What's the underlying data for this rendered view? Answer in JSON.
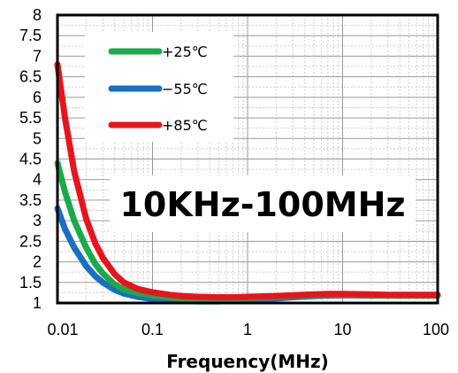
{
  "chart_data": {
    "type": "line",
    "xlabel": "Frequency(MHz)",
    "ylabel": "",
    "x_scale": "log",
    "xlim": [
      0.01,
      100
    ],
    "ylim": [
      1,
      8
    ],
    "x_ticks": [
      0.01,
      0.1,
      1,
      10,
      100
    ],
    "x_tick_labels": [
      "0.01",
      "0.1",
      "1",
      "10",
      "100"
    ],
    "y_ticks": [
      1,
      1.5,
      2,
      2.5,
      3,
      3.5,
      4,
      4.5,
      5,
      5.5,
      6,
      6.5,
      7,
      7.5,
      8
    ],
    "y_tick_labels": [
      "1",
      "1.5",
      "2",
      "2.5",
      "3",
      "3.5",
      "4",
      "4.5",
      "5",
      "5.5",
      "6",
      "6.5",
      "7",
      "7.5",
      "8"
    ],
    "grid": true,
    "legend_position": "top-left",
    "annotation": "10KHz-100MHz",
    "series": [
      {
        "name": "+25℃",
        "color": "#1aaa4a",
        "x": [
          0.01,
          0.012,
          0.015,
          0.02,
          0.025,
          0.03,
          0.04,
          0.05,
          0.07,
          0.1,
          0.15,
          0.2,
          0.3,
          0.5,
          0.7,
          1,
          2,
          3,
          5,
          7,
          10,
          20,
          30,
          50,
          100
        ],
        "values": [
          4.4,
          3.7,
          3.0,
          2.35,
          1.95,
          1.72,
          1.45,
          1.33,
          1.24,
          1.18,
          1.14,
          1.12,
          1.1,
          1.1,
          1.1,
          1.12,
          1.15,
          1.17,
          1.19,
          1.2,
          1.2,
          1.19,
          1.18,
          1.18,
          1.18
        ]
      },
      {
        "name": "−55℃",
        "color": "#1a6fc2",
        "x": [
          0.01,
          0.012,
          0.015,
          0.02,
          0.025,
          0.03,
          0.04,
          0.05,
          0.07,
          0.1,
          0.15,
          0.2,
          0.3,
          0.5,
          0.7,
          1,
          2,
          3,
          5,
          7,
          10,
          20,
          30,
          50,
          100
        ],
        "values": [
          3.3,
          2.8,
          2.35,
          1.9,
          1.65,
          1.5,
          1.32,
          1.23,
          1.15,
          1.1,
          1.07,
          1.05,
          1.04,
          1.04,
          1.05,
          1.07,
          1.11,
          1.14,
          1.17,
          1.18,
          1.19,
          1.18,
          1.18,
          1.18,
          1.18
        ]
      },
      {
        "name": "+85℃",
        "color": "#e8141c",
        "x": [
          0.01,
          0.012,
          0.015,
          0.02,
          0.025,
          0.03,
          0.04,
          0.05,
          0.07,
          0.1,
          0.15,
          0.2,
          0.3,
          0.5,
          0.7,
          1,
          2,
          3,
          5,
          7,
          10,
          20,
          30,
          50,
          100
        ],
        "values": [
          6.8,
          5.5,
          4.2,
          3.05,
          2.45,
          2.1,
          1.7,
          1.5,
          1.34,
          1.26,
          1.2,
          1.17,
          1.15,
          1.14,
          1.14,
          1.15,
          1.17,
          1.19,
          1.21,
          1.22,
          1.22,
          1.21,
          1.2,
          1.2,
          1.2
        ]
      }
    ]
  }
}
